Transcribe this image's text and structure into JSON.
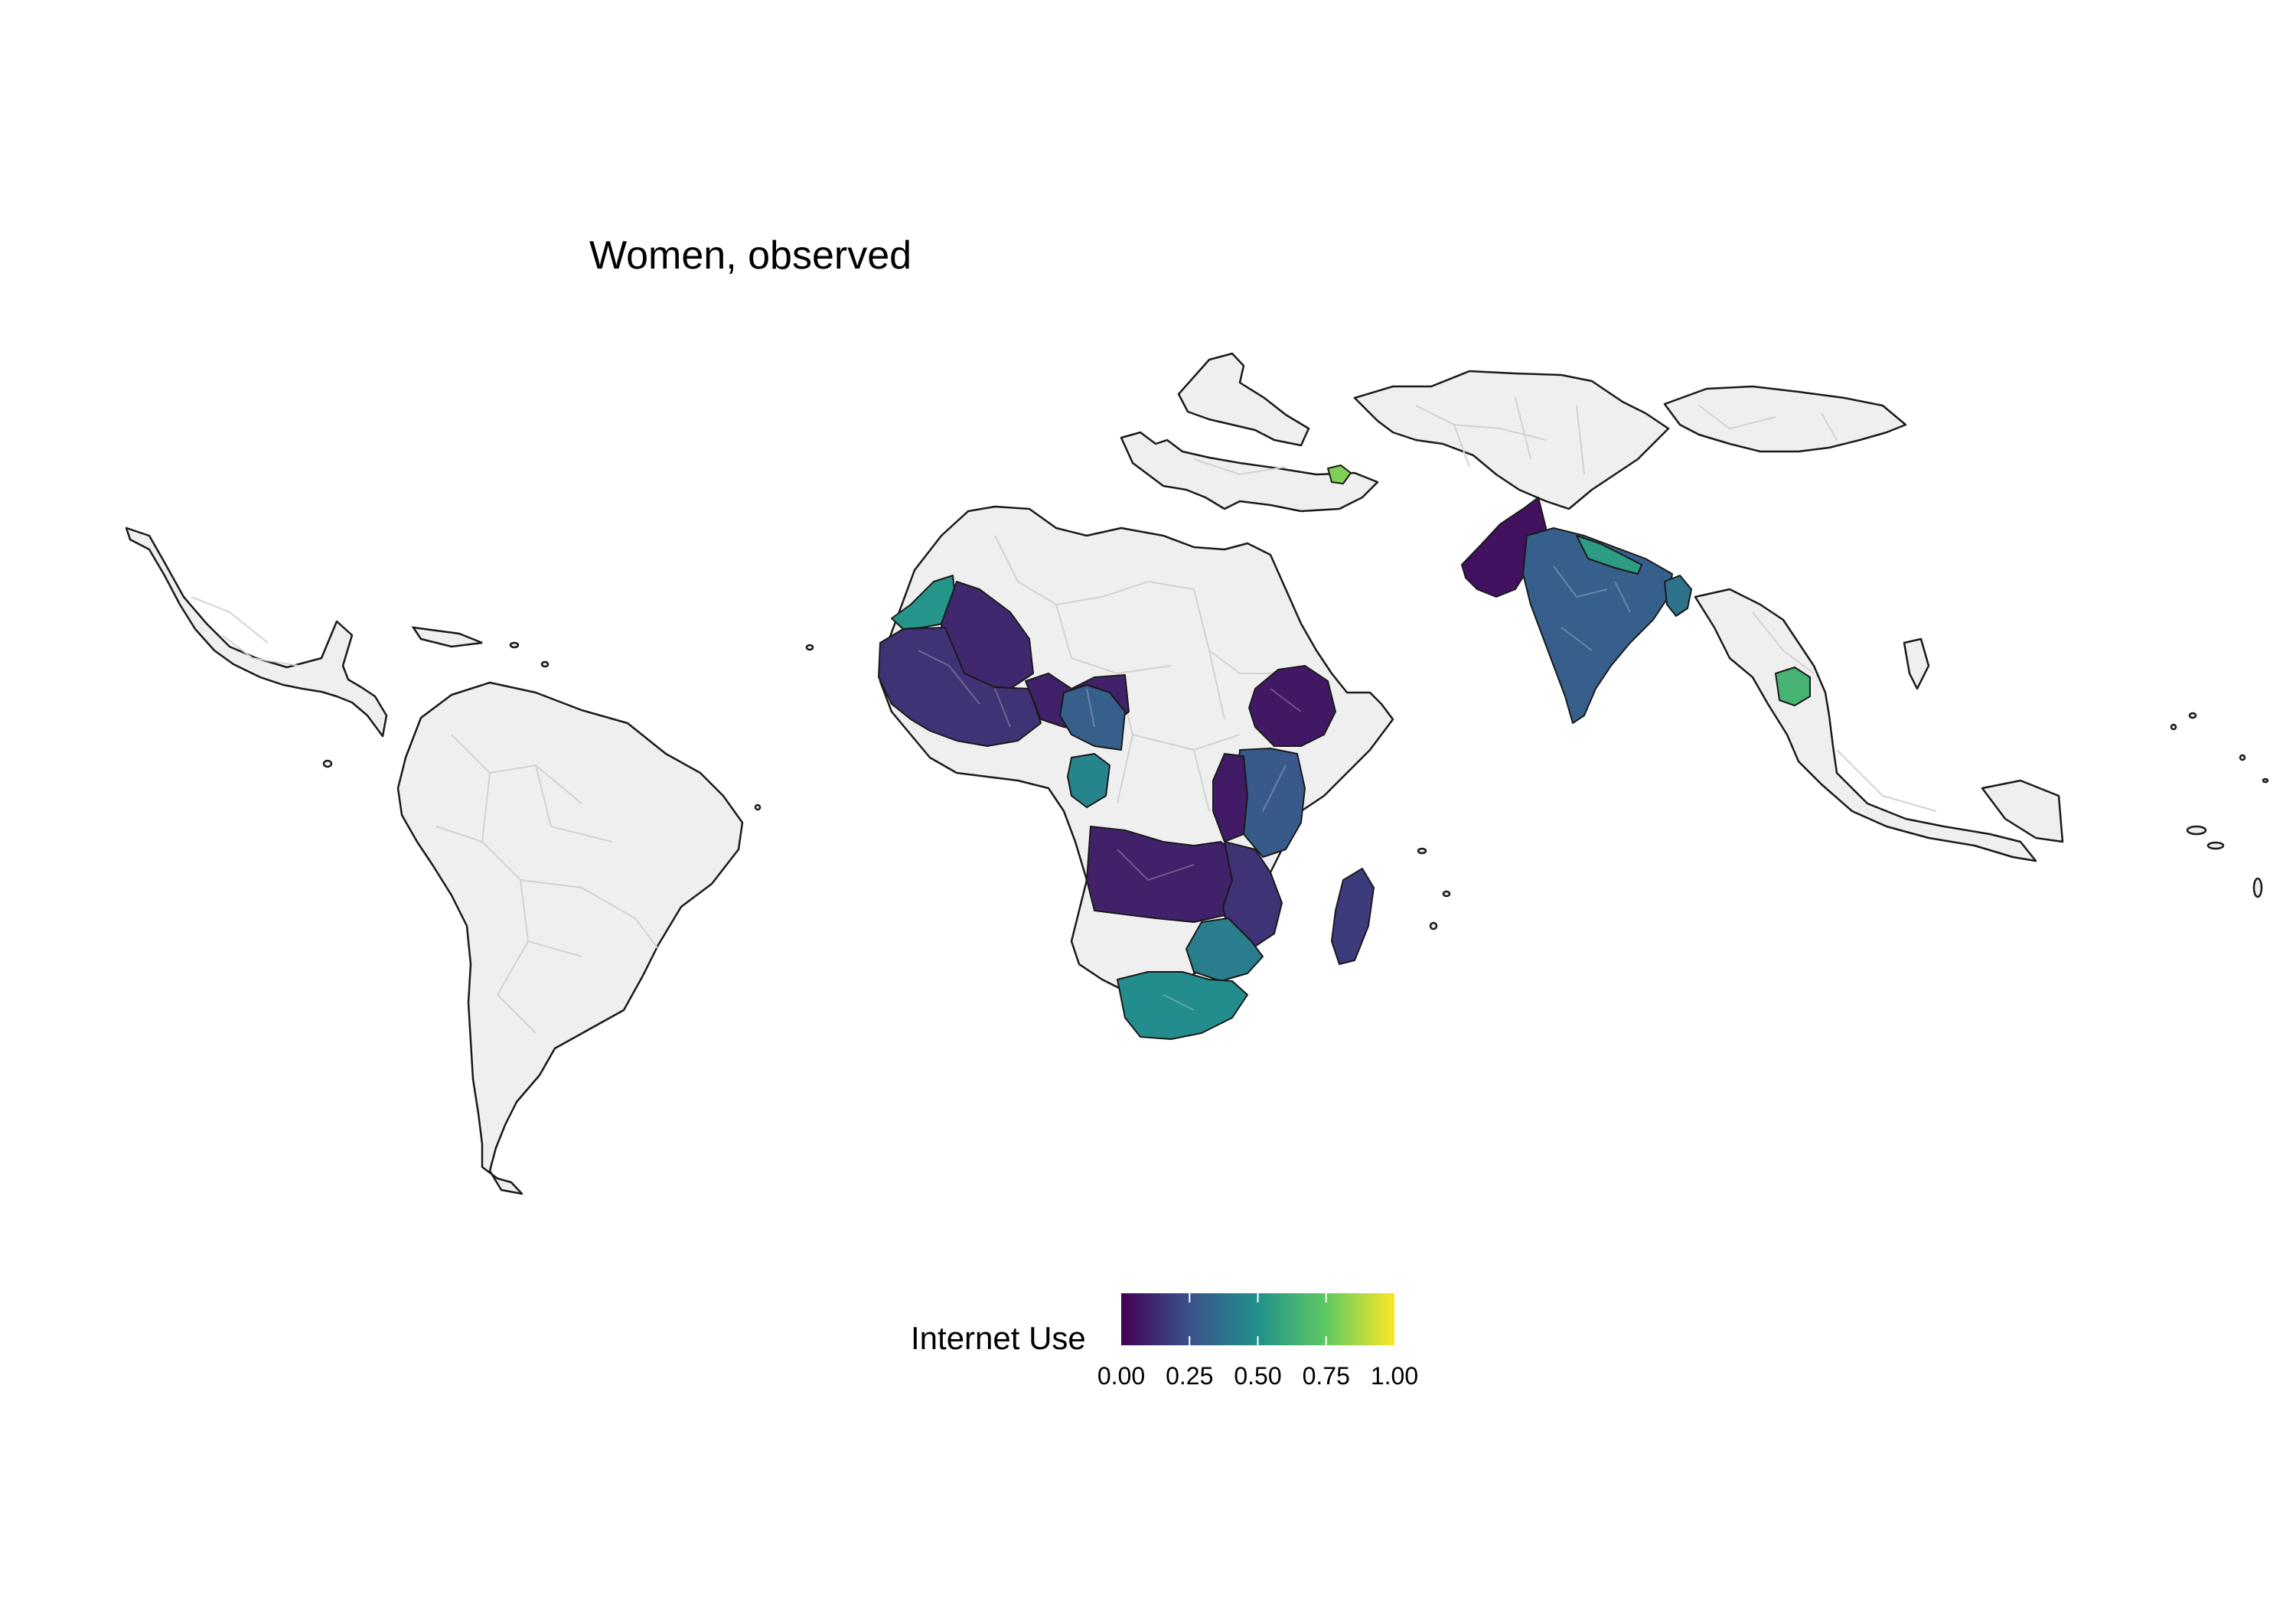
{
  "title": "Women, observed",
  "legend": {
    "title": "Internet Use",
    "ticks": [
      "0.00",
      "0.25",
      "0.50",
      "0.75",
      "1.00"
    ],
    "tick_values": [
      0,
      0.25,
      0.5,
      0.75,
      1.0
    ],
    "range": [
      0,
      1
    ],
    "palette": [
      "#440154",
      "#3b528b",
      "#21918c",
      "#5ec962",
      "#fde725"
    ]
  },
  "colors": {
    "no_data": "#efefef",
    "admin_border": "#d2d2d2",
    "coast": "#1a1a1a"
  },
  "regions": [
    {
      "id": "mauritania",
      "value": 0.52
    },
    {
      "id": "mali",
      "value": 0.12
    },
    {
      "id": "west-africa",
      "value": 0.15
    },
    {
      "id": "niger-nigeria",
      "value": 0.1
    },
    {
      "id": "nigeria-east",
      "value": 0.3
    },
    {
      "id": "cameroon-gabon",
      "value": 0.45
    },
    {
      "id": "ethiopia",
      "value": 0.07
    },
    {
      "id": "kenya-tanzania",
      "value": 0.28
    },
    {
      "id": "great-lakes",
      "value": 0.08
    },
    {
      "id": "angola-zambia",
      "value": 0.1
    },
    {
      "id": "malawi-mozambique",
      "value": 0.15
    },
    {
      "id": "zimbabwe-south",
      "value": 0.42
    },
    {
      "id": "south-africa",
      "value": 0.48
    },
    {
      "id": "madagascar",
      "value": 0.18
    },
    {
      "id": "pakistan",
      "value": 0.05
    },
    {
      "id": "india",
      "value": 0.3
    },
    {
      "id": "nepal",
      "value": 0.55
    },
    {
      "id": "bangladesh",
      "value": 0.38
    },
    {
      "id": "cambodia",
      "value": 0.65
    },
    {
      "id": "caucasus",
      "value": 0.8
    }
  ]
}
